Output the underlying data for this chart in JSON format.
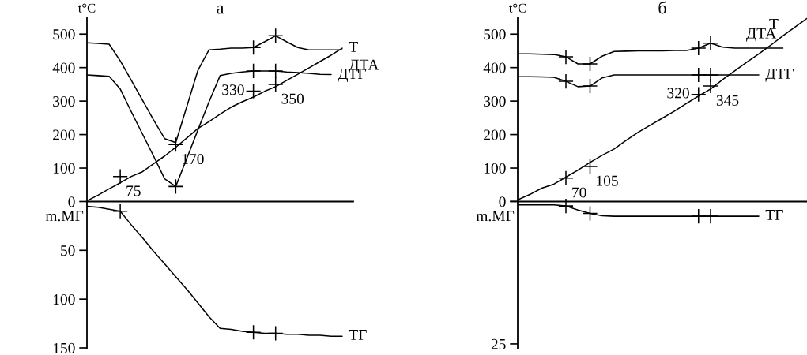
{
  "chart_data": [
    {
      "type": "line",
      "title": "а",
      "annotations": [
        "t°C",
        "m.МГ"
      ],
      "categories": [
        null,
        null,
        null,
        null,
        null,
        null,
        null,
        null,
        null,
        null,
        null,
        null,
        null,
        null,
        null,
        null,
        null,
        null,
        null,
        null,
        null,
        null,
        null,
        null,
        null
      ],
      "ylim": [
        -437,
        550
      ],
      "yticks": [
        0,
        100,
        200,
        300,
        400,
        500
      ],
      "y2lim": [
        150,
        -188.7
      ],
      "y2ticks": [
        50,
        100,
        150
      ],
      "tick_labels": "y",
      "series": [
        {
          "name": "ДТА",
          "color": "#000000",
          "values": [
            474,
            472,
            470,
            420,
            362,
            303,
            244,
            188,
            176,
            284,
            392,
            453,
            455,
            458,
            458,
            460,
            477,
            495,
            477,
            460,
            453,
            453,
            453,
            453,
            null
          ]
        },
        {
          "name": "Т",
          "color": "#000000",
          "values": [
            2,
            19,
            38,
            56,
            75,
            89,
            113,
            136,
            162,
            190,
            218,
            239,
            261,
            282,
            298,
            312,
            329,
            343,
            362,
            380,
            399,
            418,
            437,
            458,
            null
          ]
        },
        {
          "name": "ДТГ",
          "color": "#000000",
          "values": [
            378,
            376,
            374,
            336,
            268,
            202,
            136,
            68,
            45,
            129,
            214,
            298,
            376,
            383,
            387,
            390,
            390,
            390,
            387,
            385,
            383,
            380,
            379,
            null,
            null
          ]
        },
        {
          "name": "ТГ",
          "color": "#000000",
          "axis": "y2",
          "values": [
            5,
            6,
            8,
            10,
            24,
            37,
            51,
            64,
            77,
            90,
            104,
            118,
            130,
            131,
            133,
            134,
            135,
            135,
            136,
            136,
            137,
            137,
            138,
            138,
            null
          ]
        },
        {
          "type": "scatter",
          "color": "#000000",
          "marker": "cross",
          "values": [
            null,
            null,
            null,
            null,
            null,
            null,
            null,
            null,
            null,
            null,
            null,
            null,
            null,
            null,
            null,
            460,
            null,
            495,
            null,
            null,
            null,
            null,
            null,
            null,
            null
          ]
        },
        {
          "type": "scatter",
          "color": "#000000",
          "marker": "cross",
          "values": [
            null,
            null,
            null,
            75,
            null,
            null,
            null,
            null,
            170,
            null,
            null,
            null,
            null,
            null,
            null,
            330,
            null,
            350,
            null,
            null,
            null,
            null,
            null,
            null,
            null
          ],
          "value_labels": [
            null,
            null,
            null,
            "75",
            null,
            null,
            null,
            null,
            "170",
            null,
            null,
            null,
            null,
            null,
            null,
            "330",
            null,
            "350",
            null,
            null,
            null,
            null,
            null,
            null,
            null
          ]
        },
        {
          "type": "scatter",
          "color": "#000000",
          "marker": "cross",
          "values": [
            null,
            null,
            null,
            null,
            null,
            null,
            null,
            null,
            45,
            null,
            null,
            null,
            null,
            null,
            null,
            390,
            null,
            390,
            null,
            null,
            null,
            null,
            null,
            null,
            null
          ]
        },
        {
          "type": "scatter",
          "color": "#000000",
          "marker": "cross",
          "axis": "y2",
          "values": [
            null,
            null,
            null,
            10,
            null,
            null,
            null,
            null,
            null,
            null,
            null,
            null,
            null,
            null,
            null,
            134,
            null,
            135,
            null,
            null,
            null,
            null,
            null,
            null,
            null
          ]
        }
      ]
    },
    {
      "type": "line",
      "title": "б",
      "annotations": [
        "t°C",
        "m.МГ"
      ],
      "categories": [
        null,
        null,
        null,
        null,
        null,
        null,
        null,
        null,
        null,
        null,
        null,
        null,
        null,
        null,
        null,
        null,
        null,
        null,
        null,
        null,
        null,
        null,
        null,
        null,
        null
      ],
      "ylim": [
        -437,
        550
      ],
      "yticks": [
        {
          "value": 0,
          "label": null
        },
        100,
        200,
        300,
        400,
        500
      ],
      "y2lim": [
        25.7,
        -32.3
      ],
      "y2ticks": [
        0,
        25
      ],
      "tick_labels": "y",
      "series": [
        {
          "name": "ДТА",
          "color": "#000000",
          "values": [
            441,
            441,
            440,
            439,
            432,
            411,
            411,
            434,
            448,
            449,
            450,
            450,
            450,
            451,
            451,
            458,
            473,
            461,
            458,
            458,
            458,
            458,
            458,
            null,
            null
          ]
        },
        {
          "name": "Т",
          "color": "#000000",
          "values": [
            5,
            21,
            40,
            52,
            73,
            94,
            117,
            138,
            157,
            183,
            207,
            228,
            249,
            270,
            293,
            315,
            336,
            364,
            390,
            416,
            441,
            467,
            495,
            521,
            547
          ]
        },
        {
          "name": "ДТГ",
          "color": "#000000",
          "values": [
            373,
            373,
            372,
            371,
            359,
            343,
            345,
            369,
            378,
            378,
            378,
            378,
            378,
            378,
            378,
            378,
            378,
            378,
            378,
            378,
            378,
            null,
            null,
            null,
            null
          ]
        },
        {
          "name": "ТГ",
          "color": "#000000",
          "axis": "y2",
          "values": [
            0.6,
            0.6,
            0.6,
            0.6,
            0.8,
            1.5,
            2.1,
            2.5,
            2.6,
            2.6,
            2.6,
            2.6,
            2.6,
            2.6,
            2.6,
            2.6,
            2.6,
            2.6,
            2.6,
            2.6,
            2.6,
            null,
            null,
            null,
            null
          ]
        },
        {
          "type": "scatter",
          "color": "#000000",
          "marker": "cross",
          "values": [
            null,
            null,
            null,
            null,
            432,
            null,
            411,
            null,
            null,
            null,
            null,
            null,
            null,
            null,
            null,
            458,
            473,
            null,
            null,
            null,
            null,
            null,
            null,
            null,
            null
          ]
        },
        {
          "type": "scatter",
          "color": "#000000",
          "marker": "cross",
          "values": [
            null,
            null,
            null,
            null,
            70,
            null,
            105,
            null,
            null,
            null,
            null,
            null,
            null,
            null,
            null,
            320,
            345,
            null,
            null,
            null,
            null,
            null,
            null,
            null,
            null
          ],
          "value_labels": [
            null,
            null,
            null,
            null,
            "70",
            null,
            "105",
            null,
            null,
            null,
            null,
            null,
            null,
            null,
            null,
            "320",
            "345",
            null,
            null,
            null,
            null,
            null,
            null,
            null,
            null
          ]
        },
        {
          "type": "scatter",
          "color": "#000000",
          "marker": "cross",
          "values": [
            null,
            null,
            null,
            null,
            359,
            null,
            345,
            null,
            null,
            null,
            null,
            null,
            null,
            null,
            null,
            378,
            378,
            null,
            null,
            null,
            null,
            null,
            null,
            null,
            null
          ]
        },
        {
          "type": "scatter",
          "color": "#000000",
          "marker": "cross",
          "axis": "y2",
          "values": [
            null,
            null,
            null,
            null,
            0.8,
            null,
            2.1,
            null,
            null,
            null,
            null,
            null,
            null,
            null,
            null,
            2.6,
            2.6,
            null,
            null,
            null,
            null,
            null,
            null,
            null,
            null
          ]
        }
      ]
    }
  ]
}
